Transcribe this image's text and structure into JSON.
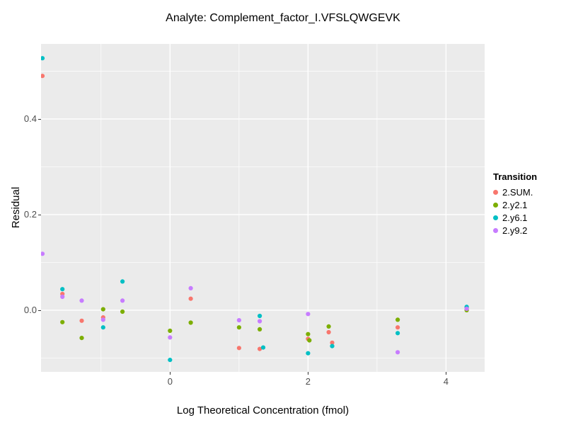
{
  "title": "Analyte: Complement_factor_I.VFSLQWGEVK",
  "chart_data": {
    "type": "scatter",
    "title": "Analyte: Complement_factor_I.VFSLQWGEVK",
    "xlabel": "Log Theoretical Concentration (fmol)",
    "ylabel": "Residual",
    "xlim": [
      -1.87,
      4.56
    ],
    "ylim": [
      -0.129,
      0.557
    ],
    "x_ticks": [
      0,
      2,
      4
    ],
    "x_tick_labels": [
      "0",
      "2",
      "4"
    ],
    "y_ticks": [
      0.0,
      0.2,
      0.4
    ],
    "y_tick_labels": [
      "0.0",
      "0.2",
      "0.4"
    ],
    "x_minor_ticks": [
      -1,
      1,
      3
    ],
    "y_minor_ticks": [
      -0.1,
      0.1,
      0.3,
      0.5
    ],
    "grid": true,
    "panel_background": "#EBEBEB",
    "grid_color": "#FFFFFF",
    "legend_position": "right",
    "legend_title": "Transition",
    "series": [
      {
        "name": "2.SUM.",
        "color": "#F8766D",
        "points": [
          [
            -1.85,
            0.49
          ],
          [
            -1.56,
            0.034
          ],
          [
            -1.28,
            -0.022
          ],
          [
            -0.97,
            -0.015
          ],
          [
            0.3,
            0.024
          ],
          [
            1.0,
            -0.079
          ],
          [
            1.3,
            -0.081
          ],
          [
            2.0,
            -0.06
          ],
          [
            2.3,
            -0.046
          ],
          [
            2.35,
            -0.068
          ],
          [
            3.3,
            -0.036
          ],
          [
            4.3,
            0.004
          ]
        ]
      },
      {
        "name": "2.y2.1",
        "color": "#7CAE00",
        "points": [
          [
            -1.56,
            -0.025
          ],
          [
            -1.28,
            -0.058
          ],
          [
            -0.97,
            0.002
          ],
          [
            -0.69,
            -0.003
          ],
          [
            0.0,
            -0.043
          ],
          [
            0.3,
            -0.026
          ],
          [
            1.0,
            -0.036
          ],
          [
            1.3,
            -0.04
          ],
          [
            2.0,
            -0.05
          ],
          [
            2.02,
            -0.063
          ],
          [
            2.3,
            -0.034
          ],
          [
            3.3,
            -0.02
          ],
          [
            4.3,
            0.0
          ]
        ]
      },
      {
        "name": "2.y6.1",
        "color": "#00BFC4",
        "points": [
          [
            -1.85,
            0.527
          ],
          [
            -1.56,
            0.044
          ],
          [
            -0.97,
            -0.036
          ],
          [
            -0.69,
            0.06
          ],
          [
            0.0,
            -0.104
          ],
          [
            1.3,
            -0.012
          ],
          [
            1.35,
            -0.078
          ],
          [
            2.0,
            -0.09
          ],
          [
            2.35,
            -0.075
          ],
          [
            3.3,
            -0.048
          ],
          [
            4.3,
            0.007
          ]
        ]
      },
      {
        "name": "2.y9.2",
        "color": "#C77CFF",
        "points": [
          [
            -1.85,
            0.118
          ],
          [
            -1.56,
            0.028
          ],
          [
            -1.28,
            0.02
          ],
          [
            -0.97,
            -0.02
          ],
          [
            -0.69,
            0.02
          ],
          [
            0.0,
            -0.057
          ],
          [
            0.3,
            0.046
          ],
          [
            1.0,
            -0.021
          ],
          [
            1.3,
            -0.023
          ],
          [
            2.0,
            -0.008
          ],
          [
            3.3,
            -0.088
          ],
          [
            4.3,
            0.003
          ]
        ]
      }
    ]
  }
}
